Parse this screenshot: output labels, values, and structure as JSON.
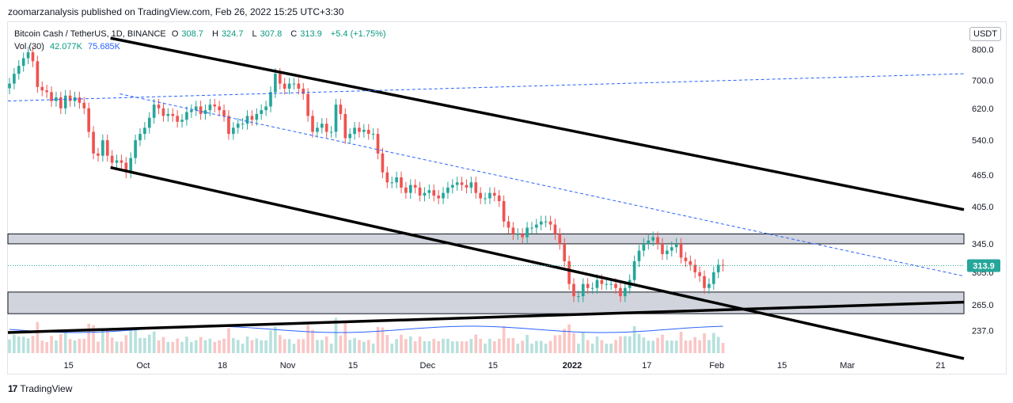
{
  "header": {
    "publisher_text": "zoomarzanalysis published on TradingView.com, Feb 26, 2022 15:25 UTC+3:30"
  },
  "legend": {
    "symbol": "Bitcoin Cash / TetherUS, 1D, BINANCE",
    "open_label": "O",
    "open": "308.7",
    "high_label": "H",
    "high": "324.7",
    "low_label": "L",
    "low": "307.8",
    "close_label": "C",
    "close": "313.9",
    "change": "+5.4 (+1.75%)",
    "vol_label": "Vol (30)",
    "vol_value": "42.077K",
    "vol_ma": "75.685K"
  },
  "currency_badge": "USDT",
  "footer": {
    "logo_text": "17",
    "brand": "TradingView"
  },
  "colors": {
    "up": "#26a69a",
    "down": "#ef5350",
    "trendline": "#000000",
    "dashed": "#2962ff",
    "zone": "#b2b5be",
    "last_price_bg": "#26a69a"
  },
  "chart_data": {
    "type": "candlestick",
    "symbol": "BCH/USDT",
    "interval": "1D",
    "y_scale": "log",
    "ylim": [
      215,
      900
    ],
    "yticks": [
      237.0,
      265.0,
      305.0,
      345.0,
      405.0,
      465.0,
      540.0,
      620.0,
      700.0,
      800.0
    ],
    "xtick_labels": [
      {
        "label": "15",
        "date": "2021-09-15"
      },
      {
        "label": "Oct",
        "date": "2021-10-01"
      },
      {
        "label": "18",
        "date": "2021-10-18"
      },
      {
        "label": "Nov",
        "date": "2021-11-01"
      },
      {
        "label": "15",
        "date": "2021-11-15"
      },
      {
        "label": "Dec",
        "date": "2021-12-01"
      },
      {
        "label": "15",
        "date": "2021-12-15"
      },
      {
        "label": "2022",
        "date": "2022-01-01"
      },
      {
        "label": "17",
        "date": "2022-01-17"
      },
      {
        "label": "Feb",
        "date": "2022-02-01"
      },
      {
        "label": "15",
        "date": "2022-02-15"
      },
      {
        "label": "Mar",
        "date": "2022-03-01"
      },
      {
        "label": "21",
        "date": "2022-03-21"
      }
    ],
    "x_start": "2021-09-02",
    "x_end": "2022-03-26",
    "last_price": "313.9",
    "closes": [
      690,
      720,
      745,
      770,
      790,
      760,
      680,
      670,
      665,
      640,
      650,
      620,
      655,
      640,
      650,
      635,
      620,
      560,
      510,
      505,
      540,
      505,
      490,
      495,
      490,
      470,
      500,
      540,
      555,
      570,
      595,
      630,
      620,
      600,
      605,
      600,
      585,
      590,
      610,
      615,
      625,
      605,
      615,
      630,
      625,
      615,
      600,
      555,
      570,
      580,
      580,
      600,
      590,
      605,
      615,
      625,
      665,
      720,
      690,
      675,
      690,
      690,
      675,
      660,
      600,
      560,
      570,
      580,
      560,
      560,
      630,
      605,
      545,
      555,
      570,
      560,
      565,
      555,
      555,
      510,
      470,
      450,
      450,
      460,
      440,
      430,
      445,
      440,
      425,
      430,
      435,
      425,
      420,
      430,
      440,
      445,
      450,
      445,
      440,
      450,
      430,
      420,
      420,
      430,
      425,
      415,
      380,
      370,
      360,
      360,
      355,
      370,
      370,
      375,
      380,
      380,
      375,
      360,
      345,
      320,
      290,
      275,
      275,
      290,
      285,
      285,
      295,
      290,
      290,
      290,
      285,
      275,
      285,
      295,
      320,
      335,
      345,
      350,
      355,
      345,
      330,
      335,
      340,
      345,
      325,
      320,
      315,
      305,
      300,
      285,
      290,
      305,
      315,
      313.9
    ],
    "volume_ma": 75685,
    "horizontal_zones": [
      [
        345,
        360
      ],
      [
        255,
        280
      ]
    ],
    "trendlines": [
      {
        "type": "channel-upper",
        "from": [
          "2021-09-24",
          840
        ],
        "to": [
          "2022-03-26",
          400
        ]
      },
      {
        "type": "channel-lower",
        "from": [
          "2021-09-24",
          480
        ],
        "to": [
          "2022-03-26",
          210
        ]
      },
      {
        "type": "support",
        "from": [
          "2021-09-02",
          235
        ],
        "to": [
          "2022-03-26",
          268
        ]
      },
      {
        "type": "dashed-resistance",
        "from": [
          "2021-09-26",
          660
        ],
        "to": [
          "2022-03-26",
          300
        ]
      },
      {
        "type": "dashed-rising",
        "from": [
          "2021-09-02",
          640
        ],
        "to": [
          "2022-03-26",
          720
        ]
      }
    ]
  }
}
